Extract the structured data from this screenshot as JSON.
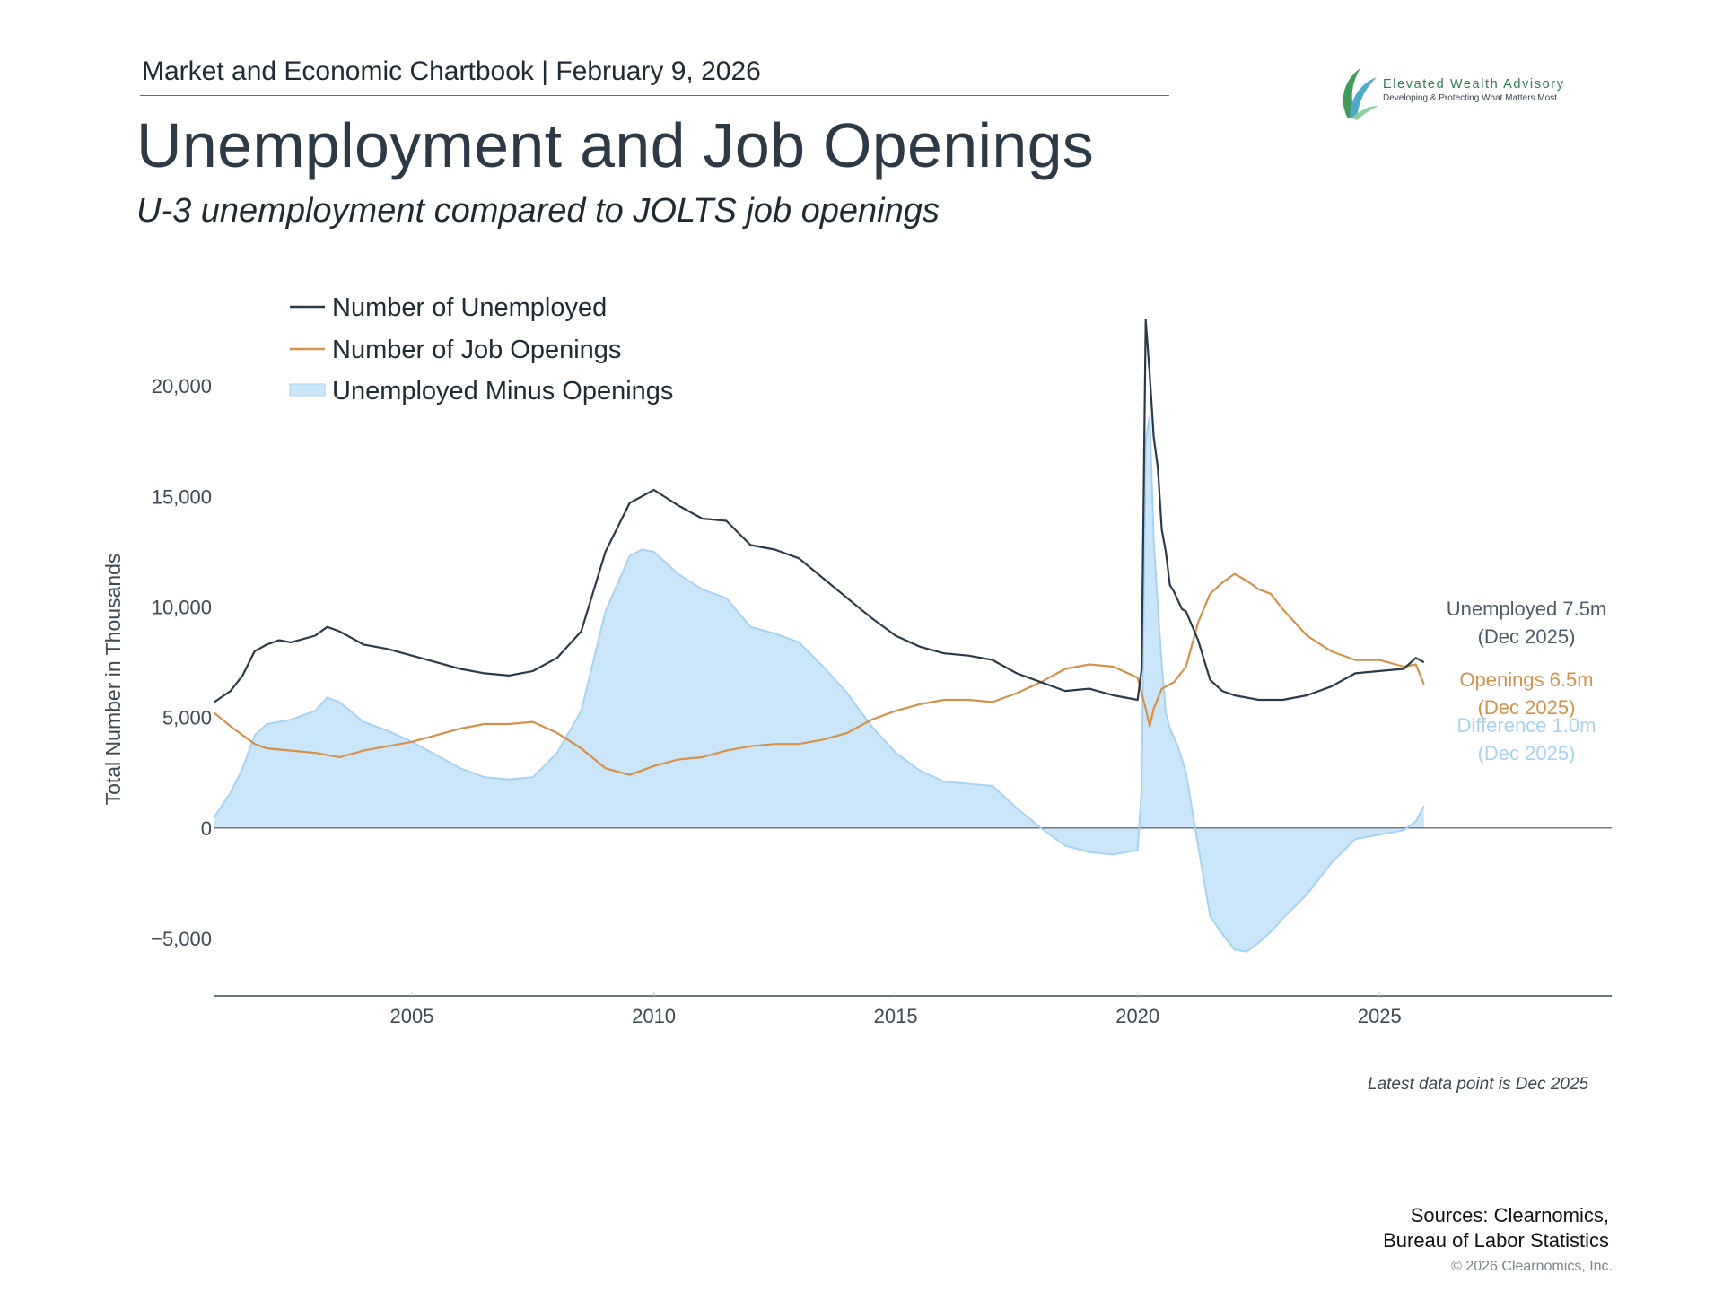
{
  "header": {
    "chartbook": "Market and Economic Chartbook | February 9, 2026",
    "title": "Unemployment and Job Openings",
    "subtitle": "U-3 unemployment compared to JOLTS job openings"
  },
  "logo": {
    "name": "Elevated Wealth Advisory",
    "tagline": "Developing & Protecting What Matters Most"
  },
  "footer": {
    "latest_note": "Latest data point is Dec 2025",
    "sources_line1": "Sources: Clearnomics,",
    "sources_line2": "Bureau of Labor Statistics",
    "copyright": "© 2026 Clearnomics, Inc."
  },
  "chart_data": {
    "type": "line",
    "title": "",
    "xlabel": "",
    "ylabel": "Total Number in Thousands",
    "xlim": [
      2000.9,
      2029.8
    ],
    "ylim": [
      -7600,
      23500
    ],
    "y_ticks": [
      20000,
      15000,
      10000,
      5000,
      0,
      -5000
    ],
    "y_tick_labels": [
      "20,000",
      "15,000",
      "10,000",
      "5,000",
      "0",
      "−5,000"
    ],
    "x_ticks": [
      2005,
      2010,
      2015,
      2020,
      2025
    ],
    "x_tick_labels": [
      "2005",
      "2010",
      "2015",
      "2020",
      "2025"
    ],
    "legend_position": "top-left",
    "grid": false,
    "colors": {
      "unemployed": "#2b3a48",
      "openings": "#d4914a",
      "difference": "#a6d2f3",
      "difference_fill": "#cce6f9"
    },
    "series": [
      {
        "key": "unemployed",
        "name": "Number of Unemployed",
        "x": [
          2000.917,
          2001.25,
          2001.5,
          2001.75,
          2002.0,
          2002.25,
          2002.5,
          2003.0,
          2003.25,
          2003.5,
          2004.0,
          2004.5,
          2005.0,
          2005.5,
          2006.0,
          2006.5,
          2007.0,
          2007.5,
          2008.0,
          2008.5,
          2009.0,
          2009.5,
          2009.75,
          2010.0,
          2010.5,
          2011.0,
          2011.5,
          2012.0,
          2012.5,
          2013.0,
          2013.5,
          2014.0,
          2014.5,
          2015.0,
          2015.5,
          2016.0,
          2016.5,
          2017.0,
          2017.5,
          2018.0,
          2018.5,
          2019.0,
          2019.5,
          2019.75,
          2020.0,
          2020.083,
          2020.167,
          2020.25,
          2020.333,
          2020.417,
          2020.5,
          2020.583,
          2020.667,
          2020.75,
          2020.833,
          2020.917,
          2021.0,
          2021.25,
          2021.5,
          2021.75,
          2022.0,
          2022.5,
          2023.0,
          2023.5,
          2024.0,
          2024.5,
          2025.0,
          2025.5,
          2025.75,
          2025.917
        ],
        "values": [
          5700,
          6200,
          6900,
          8000,
          8300,
          8500,
          8400,
          8700,
          9100,
          8900,
          8300,
          8100,
          7800,
          7500,
          7200,
          7000,
          6900,
          7100,
          7700,
          8900,
          12500,
          14700,
          15000,
          15300,
          14600,
          14000,
          13900,
          12800,
          12600,
          12200,
          11300,
          10400,
          9500,
          8700,
          8200,
          7900,
          7800,
          7600,
          7000,
          6600,
          6200,
          6300,
          6000,
          5900,
          5800,
          7200,
          23000,
          20500,
          17700,
          16300,
          13500,
          12500,
          11000,
          10700,
          10300,
          9900,
          9800,
          8500,
          6700,
          6200,
          6000,
          5800,
          5800,
          6000,
          6400,
          7000,
          7100,
          7200,
          7700,
          7500
        ]
      },
      {
        "key": "openings",
        "name": "Number of Job Openings",
        "x": [
          2000.917,
          2001.25,
          2001.5,
          2001.75,
          2002.0,
          2002.5,
          2003.0,
          2003.5,
          2004.0,
          2004.5,
          2005.0,
          2005.5,
          2006.0,
          2006.5,
          2007.0,
          2007.5,
          2008.0,
          2008.5,
          2009.0,
          2009.5,
          2010.0,
          2010.5,
          2011.0,
          2011.5,
          2012.0,
          2012.5,
          2013.0,
          2013.5,
          2014.0,
          2014.5,
          2015.0,
          2015.5,
          2016.0,
          2016.5,
          2017.0,
          2017.5,
          2018.0,
          2018.5,
          2019.0,
          2019.5,
          2020.0,
          2020.167,
          2020.25,
          2020.333,
          2020.5,
          2020.75,
          2021.0,
          2021.25,
          2021.5,
          2021.75,
          2022.0,
          2022.25,
          2022.5,
          2022.75,
          2023.0,
          2023.5,
          2024.0,
          2024.5,
          2025.0,
          2025.5,
          2025.75,
          2025.917
        ],
        "values": [
          5200,
          4600,
          4200,
          3800,
          3600,
          3500,
          3400,
          3200,
          3500,
          3700,
          3900,
          4200,
          4500,
          4700,
          4700,
          4800,
          4300,
          3600,
          2700,
          2400,
          2800,
          3100,
          3200,
          3500,
          3700,
          3800,
          3800,
          4000,
          4300,
          4900,
          5300,
          5600,
          5800,
          5800,
          5700,
          6100,
          6600,
          7200,
          7400,
          7300,
          6800,
          5400,
          4600,
          5400,
          6300,
          6600,
          7300,
          9300,
          10600,
          11100,
          11500,
          11200,
          10800,
          10600,
          9900,
          8700,
          8000,
          7600,
          7600,
          7300,
          7400,
          6500
        ]
      },
      {
        "key": "difference",
        "name": "Unemployed Minus Openings",
        "x": [
          2000.917,
          2001.25,
          2001.5,
          2001.75,
          2002.0,
          2002.5,
          2003.0,
          2003.25,
          2003.5,
          2004.0,
          2004.5,
          2005.0,
          2005.5,
          2006.0,
          2006.5,
          2007.0,
          2007.5,
          2008.0,
          2008.5,
          2009.0,
          2009.5,
          2009.75,
          2010.0,
          2010.5,
          2011.0,
          2011.5,
          2012.0,
          2012.5,
          2013.0,
          2013.5,
          2014.0,
          2014.5,
          2015.0,
          2015.5,
          2016.0,
          2016.5,
          2017.0,
          2017.5,
          2018.0,
          2018.5,
          2019.0,
          2019.5,
          2019.75,
          2020.0,
          2020.083,
          2020.167,
          2020.25,
          2020.333,
          2020.417,
          2020.5,
          2020.583,
          2020.667,
          2020.75,
          2020.833,
          2020.917,
          2021.0,
          2021.25,
          2021.5,
          2021.75,
          2022.0,
          2022.25,
          2022.5,
          2022.75,
          2023.0,
          2023.5,
          2024.0,
          2024.5,
          2025.0,
          2025.5,
          2025.75,
          2025.917
        ],
        "values": [
          500,
          1600,
          2700,
          4200,
          4700,
          4900,
          5300,
          5900,
          5700,
          4800,
          4400,
          3900,
          3300,
          2700,
          2300,
          2200,
          2300,
          3400,
          5300,
          9800,
          12300,
          12600,
          12500,
          11500,
          10800,
          10400,
          9100,
          8800,
          8400,
          7300,
          6100,
          4600,
          3400,
          2600,
          2100,
          2000,
          1900,
          900,
          0,
          -800,
          -1100,
          -1200,
          -1100,
          -1000,
          1800,
          17500,
          18700,
          13000,
          10000,
          7400,
          5200,
          4500,
          4100,
          3700,
          3100,
          2500,
          -800,
          -4000,
          -4800,
          -5500,
          -5600,
          -5200,
          -4700,
          -4100,
          -3000,
          -1600,
          -500,
          -300,
          -100,
          300,
          1000
        ]
      }
    ],
    "annotations": [
      {
        "key": "unemployed",
        "line1": "Unemployed 7.5m",
        "line2": "(Dec 2025)",
        "color": "#4d5b68"
      },
      {
        "key": "openings",
        "line1": "Openings 6.5m",
        "line2": "(Dec 2025)",
        "color": "#d4914a"
      },
      {
        "key": "difference",
        "line1": "Difference 1.0m",
        "line2": "(Dec 2025)",
        "color": "#a6d2f3"
      }
    ]
  }
}
